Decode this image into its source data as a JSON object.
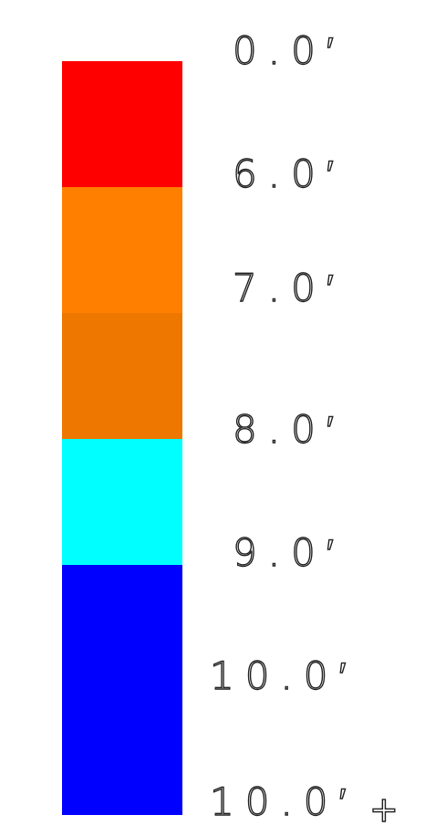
{
  "legend": {
    "segments": [
      {
        "color": "#ff0000"
      },
      {
        "color": "#ff7f00"
      },
      {
        "color": "#ee7700"
      },
      {
        "color": "#00ffff"
      },
      {
        "color": "#0000ff"
      }
    ],
    "labels": [
      "0.0′",
      "6.0′",
      "7.0′",
      "8.0′",
      "9.0′",
      "10.0′",
      "10.0′"
    ],
    "overflow_symbol": "+"
  }
}
